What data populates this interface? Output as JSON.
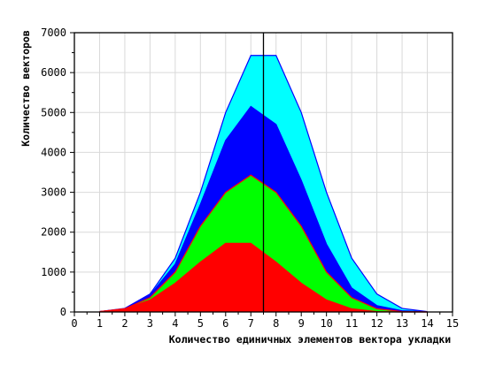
{
  "chart_data": {
    "type": "area",
    "stacked": false,
    "xlabel": "Количество единичных элементов вектора укладки",
    "ylabel": "Количество векторов",
    "xlim": [
      0,
      15
    ],
    "ylim": [
      0,
      7000
    ],
    "xticks": [
      0,
      1,
      2,
      3,
      4,
      5,
      6,
      7,
      8,
      9,
      10,
      11,
      12,
      13,
      14,
      15
    ],
    "yticks": [
      0,
      1000,
      2000,
      3000,
      4000,
      5000,
      6000,
      7000
    ],
    "grid": true,
    "vertical_marker_x": 7.5,
    "x": [
      1,
      2,
      3,
      4,
      5,
      6,
      7,
      8,
      9,
      10,
      11,
      12,
      13,
      14
    ],
    "series": [
      {
        "color": "#00ffff",
        "edge": "#0000ff",
        "values": [
          10,
          90,
          450,
          1350,
          3000,
          5000,
          6430,
          6430,
          5000,
          3000,
          1350,
          450,
          90,
          10
        ]
      },
      {
        "color": "#0000ff",
        "edge": "#0000ff",
        "values": [
          10,
          80,
          420,
          1200,
          2700,
          4300,
          5150,
          4700,
          3300,
          1700,
          600,
          160,
          30,
          5
        ]
      },
      {
        "color": "#00ff00",
        "edge": "#ff0000",
        "values": [
          10,
          80,
          360,
          1000,
          2150,
          3000,
          3430,
          3000,
          2150,
          1000,
          360,
          80,
          10,
          0
        ]
      },
      {
        "color": "#ff0000",
        "edge": "#ff0000",
        "values": [
          10,
          80,
          300,
          720,
          1250,
          1720,
          1720,
          1250,
          720,
          300,
          80,
          10,
          0,
          0
        ]
      }
    ]
  }
}
